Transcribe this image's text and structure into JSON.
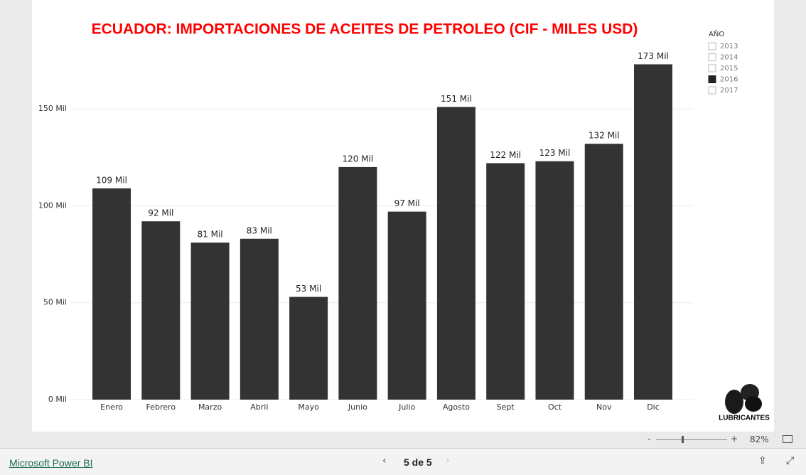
{
  "chart_data": {
    "type": "bar",
    "title": "ECUADOR: IMPORTACIONES DE ACEITES DE PETROLEO (CIF - MILES USD)",
    "categories": [
      "Enero",
      "Febrero",
      "Marzo",
      "Abril",
      "Mayo",
      "Junio",
      "Julio",
      "Agosto",
      "Sept",
      "Oct",
      "Nov",
      "Dic"
    ],
    "values": [
      109,
      92,
      81,
      83,
      53,
      120,
      97,
      151,
      122,
      123,
      132,
      173
    ],
    "value_labels": [
      "109 Mil",
      "92 Mil",
      "81 Mil",
      "83 Mil",
      "53 Mil",
      "120 Mil",
      "97 Mil",
      "151 Mil",
      "122 Mil",
      "123 Mil",
      "132 Mil",
      "173 Mil"
    ],
    "color": "#333333",
    "ylim": [
      0,
      175
    ],
    "yticks": [
      {
        "value": 0,
        "label": "0 Mil"
      },
      {
        "value": 50,
        "label": "50 Mil"
      },
      {
        "value": 100,
        "label": "100 Mil"
      },
      {
        "value": 150,
        "label": "150 Mil"
      }
    ],
    "grid": true
  },
  "slicer": {
    "title": "AÑO",
    "items": [
      {
        "label": "2013",
        "checked": false
      },
      {
        "label": "2014",
        "checked": false
      },
      {
        "label": "2015",
        "checked": false
      },
      {
        "label": "2016",
        "checked": true
      },
      {
        "label": "2017",
        "checked": false
      }
    ]
  },
  "logo": {
    "label": "LUBRICANTES"
  },
  "zoom": {
    "minus": "-",
    "plus": "+",
    "level": "82%"
  },
  "footer": {
    "brand": "Microsoft Power BI",
    "page": "5 de 5"
  }
}
